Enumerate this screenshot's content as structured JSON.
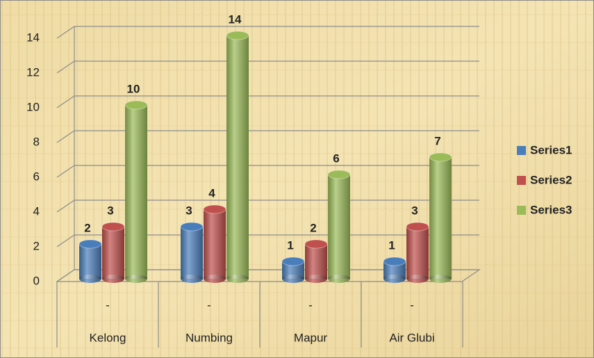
{
  "chart_data": {
    "type": "bar3d",
    "categories": [
      "Kelong",
      "Numbing",
      "Mapur",
      "Air Glubi"
    ],
    "subcategories": [
      "-",
      "-",
      "-",
      "-"
    ],
    "series": [
      {
        "name": "Series1",
        "color": "#4a7ebb",
        "values": [
          2,
          3,
          1,
          1
        ]
      },
      {
        "name": "Series2",
        "color": "#c0504d",
        "values": [
          3,
          4,
          2,
          3
        ]
      },
      {
        "name": "Series3",
        "color": "#9bbb59",
        "values": [
          10,
          14,
          6,
          7
        ]
      }
    ],
    "ylim": [
      0,
      14
    ],
    "yticks": [
      0,
      2,
      4,
      6,
      8,
      10,
      12,
      14
    ],
    "grid": true,
    "legend": "right"
  }
}
